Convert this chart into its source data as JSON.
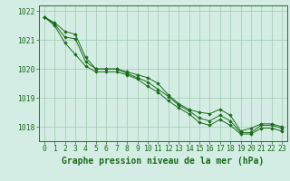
{
  "title": "Graphe pression niveau de la mer (hPa)",
  "x": [
    0,
    1,
    2,
    3,
    4,
    5,
    6,
    7,
    8,
    9,
    10,
    11,
    12,
    13,
    14,
    15,
    16,
    17,
    18,
    19,
    20,
    21,
    22,
    23
  ],
  "line1": [
    1021.8,
    1021.6,
    1021.3,
    1021.2,
    1020.4,
    1020.0,
    1020.0,
    1020.0,
    1019.9,
    1019.8,
    1019.7,
    1019.5,
    1019.1,
    1018.8,
    1018.6,
    1018.5,
    1018.45,
    1018.6,
    1018.4,
    1017.85,
    1017.95,
    1018.1,
    1018.1,
    1018.0
  ],
  "line2": [
    1021.8,
    1021.55,
    1021.1,
    1021.05,
    1020.25,
    1020.0,
    1020.0,
    1020.0,
    1019.85,
    1019.7,
    1019.55,
    1019.3,
    1019.05,
    1018.75,
    1018.55,
    1018.3,
    1018.2,
    1018.4,
    1018.2,
    1017.8,
    1017.8,
    1018.05,
    1018.05,
    1017.95
  ],
  "line3": [
    1021.8,
    1021.5,
    1020.9,
    1020.5,
    1020.1,
    1019.9,
    1019.9,
    1019.9,
    1019.8,
    1019.65,
    1019.4,
    1019.2,
    1018.9,
    1018.65,
    1018.45,
    1018.15,
    1018.05,
    1018.25,
    1018.05,
    1017.75,
    1017.75,
    1017.95,
    1017.95,
    1017.85
  ],
  "ylim": [
    1017.5,
    1022.2
  ],
  "yticks": [
    1018,
    1019,
    1020,
    1021,
    1022
  ],
  "line_color": "#1a6b1a",
  "marker_color": "#1a6b1a",
  "bg_color": "#d4ede4",
  "grid_color": "#a0c8b0",
  "axis_color": "#2a6b2a",
  "label_color": "#1a6b1a",
  "title_color": "#1a6b1a",
  "title_fontsize": 7.0,
  "tick_fontsize": 5.8
}
